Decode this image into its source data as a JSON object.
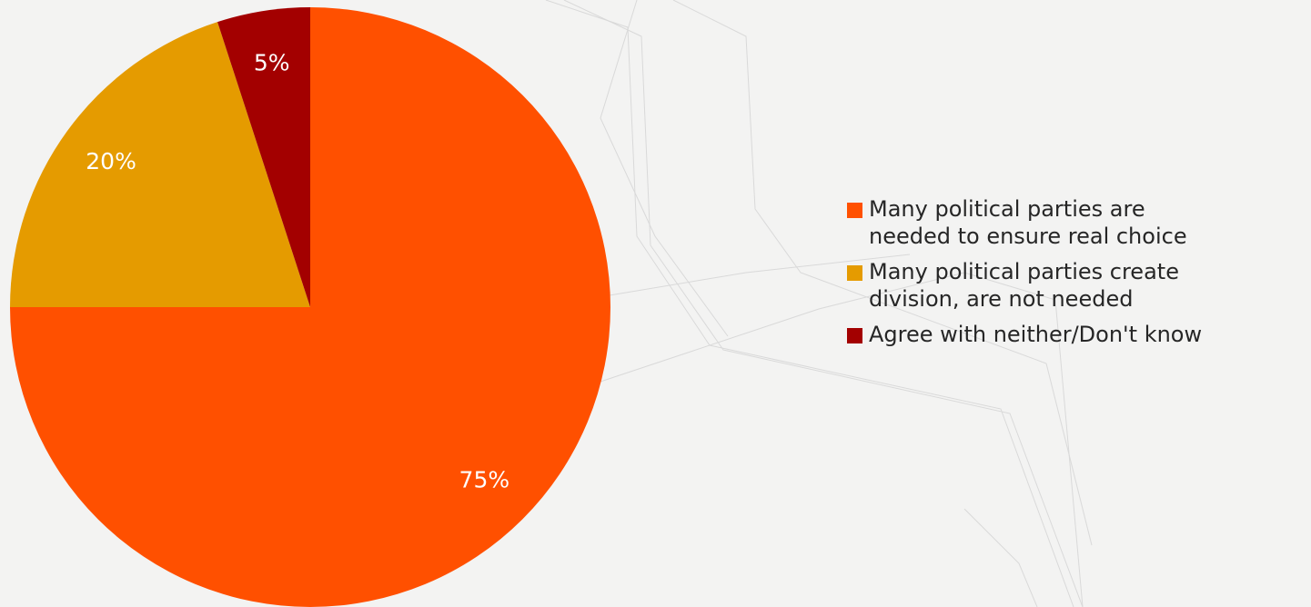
{
  "chart_data": {
    "type": "pie",
    "slices": [
      {
        "label": "Many political parties are needed to ensure real choice",
        "value": 75,
        "display": "75%",
        "color": "#ff5000"
      },
      {
        "label": "Many political parties create division, are not needed",
        "value": 20,
        "display": "20%",
        "color": "#e59b00"
      },
      {
        "label": "Agree with neither/Don't know",
        "value": 5,
        "display": "5%",
        "color": "#a30000"
      }
    ],
    "start": "12 o'clock",
    "direction": "clockwise",
    "legend_position": "right"
  },
  "legend": {
    "items": [
      {
        "label": "Many political parties are needed to ensure real choice",
        "color": "#ff5000"
      },
      {
        "label": "Many political parties create division, are not needed",
        "color": "#e59b00"
      },
      {
        "label": "Agree with neither/Don't know",
        "color": "#a30000"
      }
    ]
  }
}
